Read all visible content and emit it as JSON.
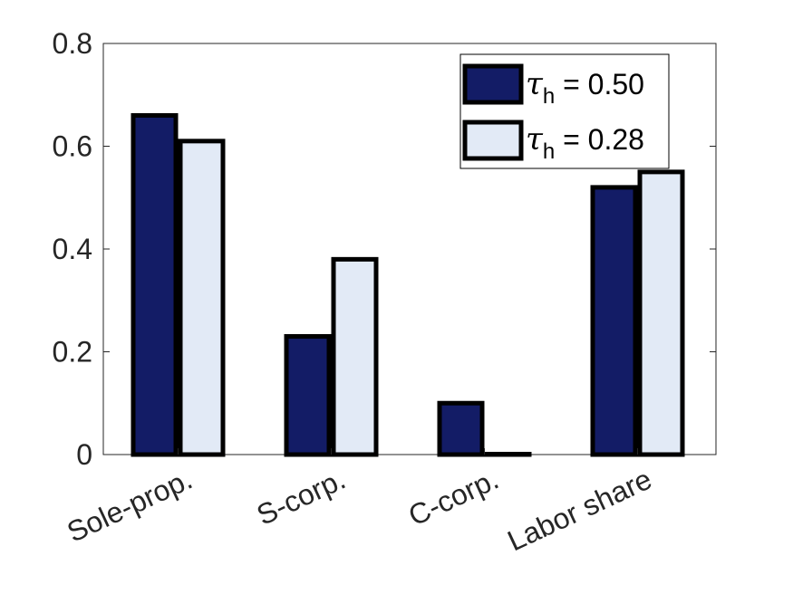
{
  "chart_data": {
    "type": "bar",
    "categories": [
      "Sole-prop.",
      "S-corp.",
      "C-corp.",
      "Labor share"
    ],
    "series": [
      {
        "name_symbol": "τ",
        "name_subscript": "h",
        "name_value": " = 0.50",
        "values": [
          0.66,
          0.23,
          0.1,
          0.52
        ],
        "color": "#131c66"
      },
      {
        "name_symbol": "τ",
        "name_subscript": "h",
        "name_value": " = 0.28",
        "values": [
          0.61,
          0.38,
          0.0,
          0.55
        ],
        "color": "#e2eaf6"
      }
    ],
    "yticks": [
      "0",
      "0.2",
      "0.4",
      "0.6",
      "0.8"
    ],
    "ylim": [
      0,
      0.8
    ],
    "legend_position": "top-right",
    "grid": false,
    "title": "",
    "xlabel": "",
    "ylabel": ""
  }
}
